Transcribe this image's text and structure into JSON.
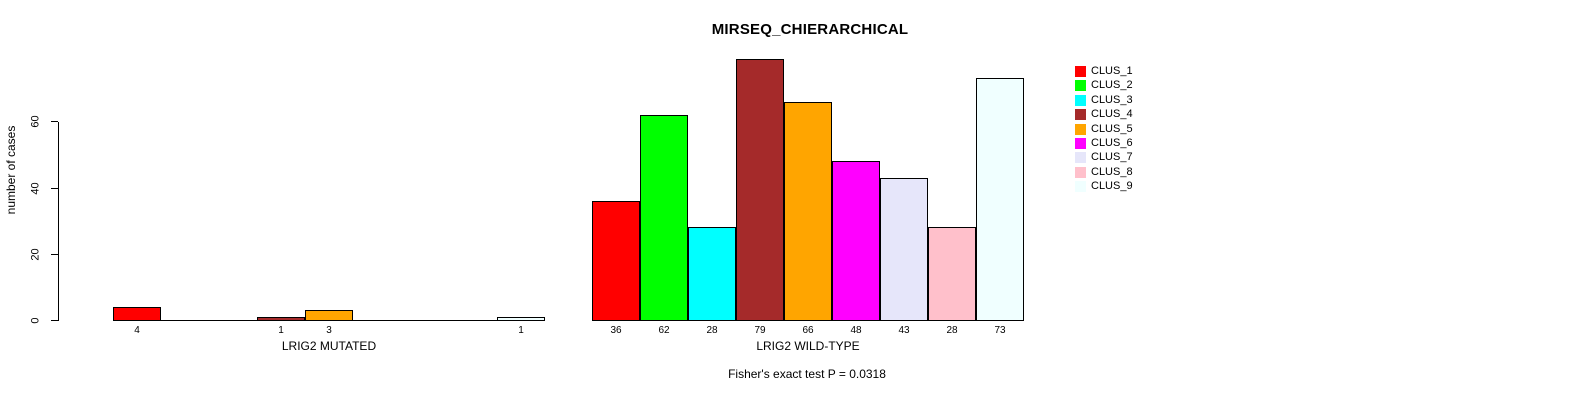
{
  "title": "MIRSEQ_CHIERARCHICAL",
  "y_axis": {
    "label": "number of cases",
    "tick_labels": [
      "0",
      "20",
      "40",
      "60"
    ]
  },
  "caption": "Fisher's exact test P = 0.0318",
  "legend": {
    "entries": [
      {
        "label": "CLUS_1",
        "color": "#FF0000"
      },
      {
        "label": "CLUS_2",
        "color": "#00FF00"
      },
      {
        "label": "CLUS_3",
        "color": "#00FFFF"
      },
      {
        "label": "CLUS_4",
        "color": "#A52A2A"
      },
      {
        "label": "CLUS_5",
        "color": "#FFA500"
      },
      {
        "label": "CLUS_6",
        "color": "#FF00FF"
      },
      {
        "label": "CLUS_7",
        "color": "#E6E6FA"
      },
      {
        "label": "CLUS_8",
        "color": "#FFC0CB"
      },
      {
        "label": "CLUS_9",
        "color": "#F0FFFF"
      }
    ]
  },
  "chart_data": {
    "type": "bar",
    "title": "MIRSEQ_CHIERARCHICAL",
    "xlabel": "",
    "ylabel": "number of cases",
    "ylim": [
      0,
      80
    ],
    "yticks": [
      0,
      20,
      40,
      60
    ],
    "grid": false,
    "legend_position": "top-right",
    "bar_border_color": "#000000",
    "categories": [
      "CLUS_1",
      "CLUS_2",
      "CLUS_3",
      "CLUS_4",
      "CLUS_5",
      "CLUS_6",
      "CLUS_7",
      "CLUS_8",
      "CLUS_9"
    ],
    "colors": [
      "#FF0000",
      "#00FF00",
      "#00FFFF",
      "#A52A2A",
      "#FFA500",
      "#FF00FF",
      "#E6E6FA",
      "#FFC0CB",
      "#F0FFFF"
    ],
    "series": [
      {
        "name": "LRIG2 MUTATED",
        "values": [
          4,
          0,
          0,
          1,
          3,
          0,
          0,
          0,
          1
        ]
      },
      {
        "name": "LRIG2 WILD-TYPE",
        "values": [
          36,
          62,
          28,
          79,
          66,
          48,
          43,
          28,
          73
        ]
      }
    ],
    "annotation": "Fisher's exact test P = 0.0318"
  }
}
